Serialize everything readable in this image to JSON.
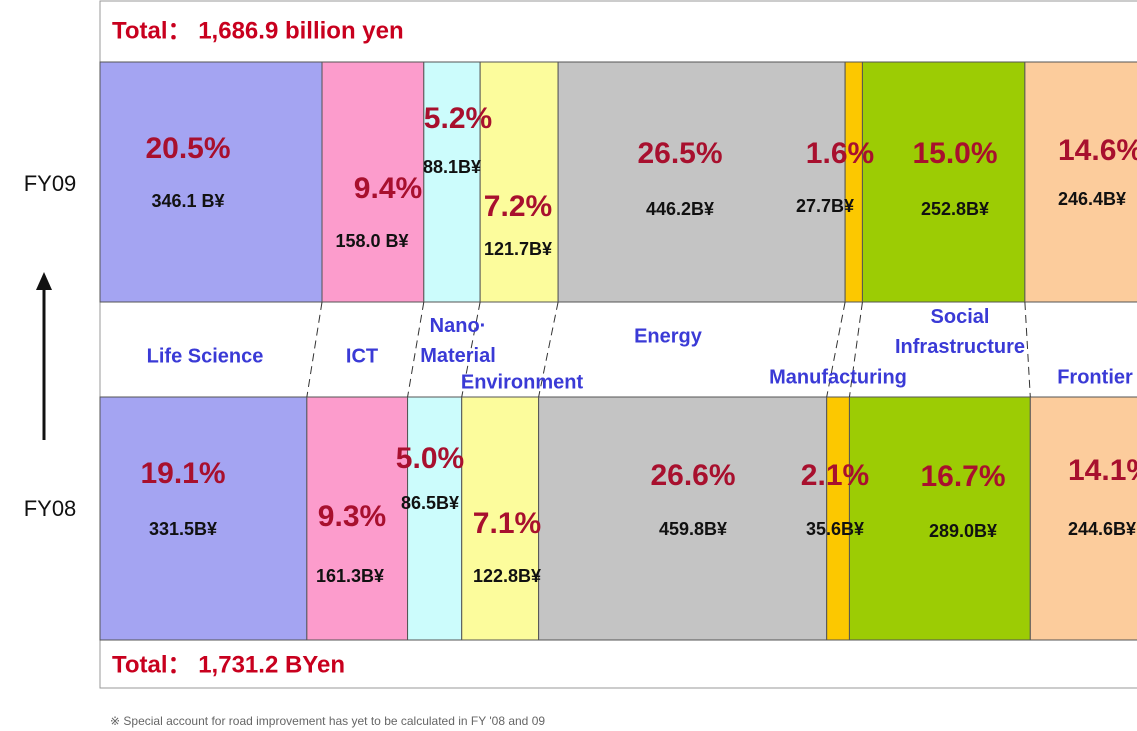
{
  "chart_data": {
    "type": "bar",
    "orientation": "horizontal",
    "stacked": true,
    "categories": [
      "FY09",
      "FY08"
    ],
    "totals": [
      "Total： 1,686.9 billion yen",
      "Total： 1,731.2 BYen"
    ],
    "xlim": [
      0,
      100
    ],
    "series": [
      {
        "name": "Life Science",
        "color": "#a4a4f2",
        "values": [
          20.5,
          19.1
        ],
        "value_labels": [
          "20.5%",
          "19.1%"
        ],
        "amount_labels": [
          "346.1 B¥",
          "331.5B¥"
        ]
      },
      {
        "name": "ICT",
        "color": "#fc9ccc",
        "values": [
          9.4,
          9.3
        ],
        "value_labels": [
          "9.4%",
          "9.3%"
        ],
        "amount_labels": [
          "158.0 B¥",
          "161.3B¥"
        ]
      },
      {
        "name": "Nano· Material",
        "color": "#ccfcfc",
        "values": [
          5.2,
          5.0
        ],
        "value_labels": [
          "5.2%",
          "5.0%"
        ],
        "amount_labels": [
          "88.1B¥",
          "86.5B¥"
        ]
      },
      {
        "name": "Environment",
        "color": "#fcfc9c",
        "values": [
          7.2,
          7.1
        ],
        "value_labels": [
          "7.2%",
          "7.1%"
        ],
        "amount_labels": [
          "121.7B¥",
          "122.8B¥"
        ]
      },
      {
        "name": "Energy",
        "color": "#c4c4c4",
        "values": [
          26.5,
          26.6
        ],
        "value_labels": [
          "26.5%",
          "26.6%"
        ],
        "amount_labels": [
          "446.2B¥",
          "459.8B¥"
        ]
      },
      {
        "name": "Manufacturing",
        "color": "#fcc800",
        "values": [
          1.6,
          2.1
        ],
        "value_labels": [
          "1.6%",
          "2.1%"
        ],
        "amount_labels": [
          "27.7B¥",
          "35.6B¥"
        ]
      },
      {
        "name": "Social Infrastructure",
        "color": "#9ccc04",
        "values": [
          15.0,
          16.7
        ],
        "value_labels": [
          "15.0%",
          "16.7%"
        ],
        "amount_labels": [
          "252.8B¥",
          "289.0B¥"
        ]
      },
      {
        "name": "Frontier",
        "color": "#fccc9c",
        "values": [
          14.6,
          14.1
        ],
        "value_labels": [
          "14.6%",
          "14.1%"
        ],
        "amount_labels": [
          "246.4B¥",
          "244.6B¥"
        ]
      }
    ],
    "note": "※ Special account for road improvement has yet to be calculated in FY '08 and 09"
  }
}
